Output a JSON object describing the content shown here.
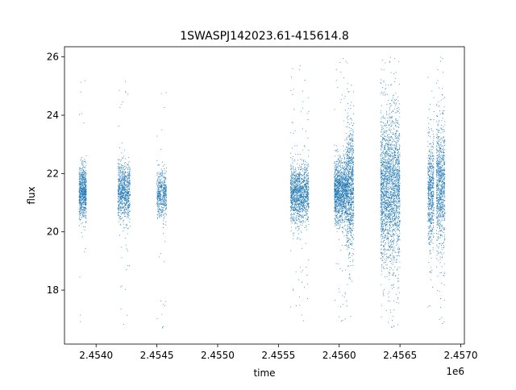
{
  "chart_data": {
    "type": "scatter",
    "title": "1SWASPJ142023.61-415614.8",
    "xlabel": "time",
    "ylabel": "flux",
    "x_offset_label": "1e6",
    "xlim": [
      2.45374,
      2.45703
    ],
    "ylim": [
      16.15,
      26.35
    ],
    "x_ticks": [
      2.454,
      2.4545,
      2.455,
      2.4555,
      2.456,
      2.4565,
      2.457
    ],
    "x_tick_labels": [
      "2.4540",
      "2.4545",
      "2.4550",
      "2.4555",
      "2.4560",
      "2.4565",
      "2.4570"
    ],
    "y_ticks": [
      18,
      20,
      22,
      24,
      26
    ],
    "y_tick_labels": [
      "18",
      "20",
      "22",
      "24",
      "26"
    ],
    "grid": false,
    "marker_color": "#1f77b4",
    "series": [
      {
        "clusters": [
          {
            "x_range": [
              2.45386,
              2.45392
            ],
            "y_center": 21.35,
            "spread": 0.45,
            "n": 700,
            "y_range": [
              16.6,
              25.4
            ]
          },
          {
            "x_range": [
              2.45418,
              2.45428
            ],
            "y_center": 21.35,
            "spread": 0.5,
            "n": 800,
            "y_range": [
              16.8,
              25.6
            ]
          },
          {
            "x_range": [
              2.4545,
              2.45458
            ],
            "y_center": 21.3,
            "spread": 0.4,
            "n": 500,
            "y_range": [
              16.6,
              25.0
            ]
          },
          {
            "x_range": [
              2.4556,
              2.45575
            ],
            "y_center": 21.3,
            "spread": 0.5,
            "n": 1300,
            "y_range": [
              16.8,
              25.8
            ]
          },
          {
            "x_range": [
              2.45596,
              2.45606
            ],
            "y_center": 21.4,
            "spread": 0.55,
            "n": 1200,
            "y_range": [
              16.8,
              26.1
            ]
          },
          {
            "x_range": [
              2.45606,
              2.45612
            ],
            "y_center": 21.5,
            "spread": 1.0,
            "n": 900,
            "y_range": [
              17.0,
              26.0
            ]
          },
          {
            "x_range": [
              2.45634,
              2.4565
            ],
            "y_center": 21.5,
            "spread": 1.3,
            "n": 2200,
            "y_range": [
              16.6,
              26.1
            ]
          },
          {
            "x_range": [
              2.45673,
              2.45678
            ],
            "y_center": 21.4,
            "spread": 0.9,
            "n": 600,
            "y_range": [
              16.8,
              25.8
            ]
          },
          {
            "x_range": [
              2.4568,
              2.45687
            ],
            "y_center": 21.6,
            "spread": 1.1,
            "n": 900,
            "y_range": [
              16.7,
              26.1
            ]
          }
        ]
      }
    ]
  }
}
